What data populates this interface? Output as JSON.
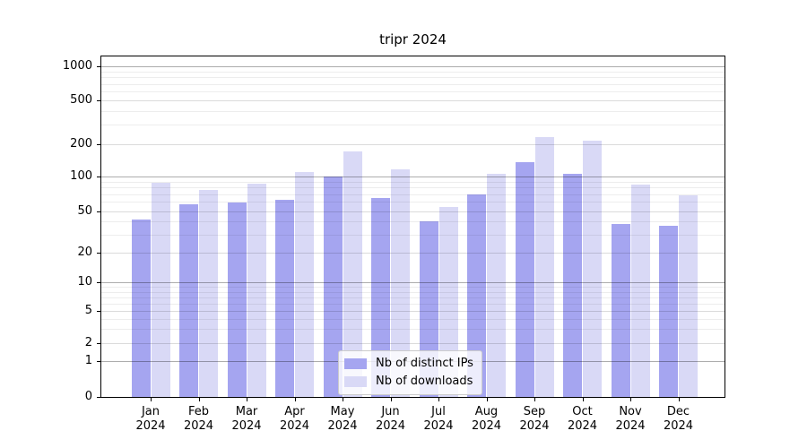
{
  "title": "tripr 2024",
  "chart_data": {
    "type": "bar",
    "title": "tripr 2024",
    "categories": [
      "Jan 2024",
      "Feb 2024",
      "Mar 2024",
      "Apr 2024",
      "May 2024",
      "Jun 2024",
      "Jul 2024",
      "Aug 2024",
      "Sep 2024",
      "Oct 2024",
      "Nov 2024",
      "Dec 2024"
    ],
    "series": [
      {
        "name": "Nb of distinct IPs",
        "color": "#a5a5f0",
        "values": [
          42,
          57,
          59,
          63,
          100,
          65,
          40,
          70,
          136,
          106,
          38,
          36
        ]
      },
      {
        "name": "Nb of downloads",
        "color": "#d9d9f6",
        "values": [
          88,
          76,
          87,
          110,
          172,
          115,
          54,
          105,
          232,
          216,
          84,
          69
        ]
      }
    ],
    "xlabel": "",
    "ylabel": "",
    "yscale": "symlog (log above 1, linear 0-1)",
    "yticks": [
      0,
      1,
      2,
      5,
      10,
      20,
      50,
      100,
      200,
      500,
      1000
    ],
    "ylim": [
      0,
      1300
    ],
    "grid": "horizontal, major and minor, drawn above bars",
    "legend_position": "lower center (inside plot)"
  },
  "colors": {
    "bar_distinct_ips": "#a5a5f0",
    "bar_downloads": "#d9d9f6",
    "grid_major": "rgba(0,0,0,0.32)",
    "grid_minor_labeled": "rgba(0,0,0,0.14)",
    "grid_minor": "rgba(0,0,0,0.07)",
    "spine": "#000000",
    "legend_border": "#cccccc",
    "legend_background": "rgba(255,255,255,0.8)"
  }
}
